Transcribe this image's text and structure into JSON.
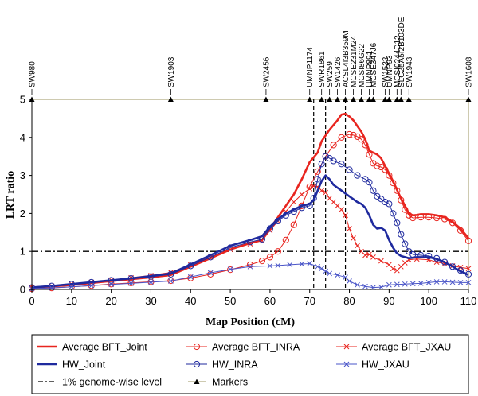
{
  "chart_data": {
    "type": "line",
    "xlabel": "Map Position (cM)",
    "ylabel": "LRT ratio",
    "xlim": [
      0,
      110
    ],
    "ylim": [
      0,
      5
    ],
    "xticks": [
      0,
      10,
      20,
      30,
      40,
      50,
      60,
      70,
      80,
      90,
      100,
      110
    ],
    "yticks": [
      0,
      1,
      2,
      3,
      4,
      5
    ],
    "genome_wise_level": {
      "name": "1% genome-wise level",
      "value": 1.0,
      "color": "#000000"
    },
    "markers_name": "Markers",
    "markers": [
      {
        "name": "SW980",
        "x": 0
      },
      {
        "name": "SW1903",
        "x": 35
      },
      {
        "name": "SW2456",
        "x": 59
      },
      {
        "name": "UMNP1174",
        "x": 70
      },
      {
        "name": "SWR1861",
        "x": 73
      },
      {
        "name": "SW259",
        "x": 75
      },
      {
        "name": "SW1426",
        "x": 77
      },
      {
        "name": "ACSL4I3B359M",
        "x": 79
      },
      {
        "name": "MCSE231M24",
        "x": 81
      },
      {
        "name": "MCSI86G22",
        "x": 83
      },
      {
        "name": "UMNP891",
        "x": 85
      },
      {
        "name": "MCSE347J6",
        "x": 86
      },
      {
        "name": "SW1522",
        "x": 89
      },
      {
        "name": "UMNP93",
        "x": 90
      },
      {
        "name": "MCSI0244D12",
        "x": 92
      },
      {
        "name": "SLC25A5I2B103DE",
        "x": 93
      },
      {
        "name": "SW1943",
        "x": 95
      },
      {
        "name": "SW1608",
        "x": 110
      }
    ],
    "vlines": [
      71,
      74,
      79
    ],
    "series": [
      {
        "name": "Average BFT_Joint",
        "color": "#e8251f",
        "style": "solid",
        "marker": "none",
        "width": 2.6,
        "points": [
          [
            0,
            0.05
          ],
          [
            5,
            0.08
          ],
          [
            10,
            0.12
          ],
          [
            15,
            0.17
          ],
          [
            20,
            0.22
          ],
          [
            25,
            0.27
          ],
          [
            30,
            0.32
          ],
          [
            35,
            0.38
          ],
          [
            40,
            0.6
          ],
          [
            45,
            0.82
          ],
          [
            50,
            1.05
          ],
          [
            55,
            1.22
          ],
          [
            58,
            1.3
          ],
          [
            60,
            1.6
          ],
          [
            62,
            1.9
          ],
          [
            64,
            2.2
          ],
          [
            66,
            2.5
          ],
          [
            68,
            2.9
          ],
          [
            70,
            3.35
          ],
          [
            72,
            3.6
          ],
          [
            73,
            3.9
          ],
          [
            75,
            4.2
          ],
          [
            77,
            4.45
          ],
          [
            78,
            4.6
          ],
          [
            79,
            4.62
          ],
          [
            80,
            4.55
          ],
          [
            81,
            4.45
          ],
          [
            82,
            4.3
          ],
          [
            83,
            4.15
          ],
          [
            84,
            3.95
          ],
          [
            85,
            3.65
          ],
          [
            86,
            3.6
          ],
          [
            87,
            3.55
          ],
          [
            88,
            3.45
          ],
          [
            89,
            3.25
          ],
          [
            90,
            3.05
          ],
          [
            91,
            2.85
          ],
          [
            92,
            2.62
          ],
          [
            93,
            2.4
          ],
          [
            94,
            2.2
          ],
          [
            95,
            2.0
          ],
          [
            96,
            1.95
          ],
          [
            97,
            1.96
          ],
          [
            98,
            1.98
          ],
          [
            100,
            1.98
          ],
          [
            102,
            1.95
          ],
          [
            104,
            1.9
          ],
          [
            106,
            1.78
          ],
          [
            108,
            1.6
          ],
          [
            110,
            1.35
          ]
        ]
      },
      {
        "name": "Average BFT_INRA",
        "color": "#e8251f",
        "style": "solid",
        "marker": "circle",
        "width": 1,
        "points": [
          [
            0,
            0.02
          ],
          [
            5,
            0.04
          ],
          [
            10,
            0.07
          ],
          [
            15,
            0.1
          ],
          [
            20,
            0.14
          ],
          [
            25,
            0.17
          ],
          [
            30,
            0.2
          ],
          [
            35,
            0.23
          ],
          [
            40,
            0.3
          ],
          [
            45,
            0.4
          ],
          [
            50,
            0.52
          ],
          [
            55,
            0.65
          ],
          [
            58,
            0.75
          ],
          [
            60,
            0.85
          ],
          [
            62,
            1.0
          ],
          [
            64,
            1.3
          ],
          [
            66,
            1.7
          ],
          [
            68,
            2.2
          ],
          [
            70,
            2.7
          ],
          [
            72,
            3.1
          ],
          [
            74,
            3.5
          ],
          [
            76,
            3.8
          ],
          [
            78,
            4.0
          ],
          [
            80,
            4.08
          ],
          [
            81,
            4.06
          ],
          [
            82,
            4.02
          ],
          [
            83,
            3.95
          ],
          [
            84,
            3.8
          ],
          [
            85,
            3.55
          ],
          [
            86,
            3.32
          ],
          [
            87,
            3.25
          ],
          [
            88,
            3.22
          ],
          [
            89,
            3.15
          ],
          [
            90,
            3.0
          ],
          [
            91,
            2.8
          ],
          [
            92,
            2.6
          ],
          [
            93,
            2.35
          ],
          [
            94,
            2.1
          ],
          [
            95,
            1.95
          ],
          [
            96,
            1.88
          ],
          [
            98,
            1.9
          ],
          [
            100,
            1.9
          ],
          [
            102,
            1.88
          ],
          [
            104,
            1.85
          ],
          [
            106,
            1.75
          ],
          [
            108,
            1.55
          ],
          [
            110,
            1.28
          ]
        ]
      },
      {
        "name": "Average BFT_JXAU",
        "color": "#e8251f",
        "style": "solid",
        "marker": "x",
        "width": 1,
        "points": [
          [
            0,
            0.05
          ],
          [
            5,
            0.09
          ],
          [
            10,
            0.14
          ],
          [
            15,
            0.19
          ],
          [
            20,
            0.25
          ],
          [
            25,
            0.31
          ],
          [
            30,
            0.37
          ],
          [
            35,
            0.45
          ],
          [
            40,
            0.65
          ],
          [
            45,
            0.85
          ],
          [
            50,
            1.05
          ],
          [
            55,
            1.2
          ],
          [
            58,
            1.28
          ],
          [
            60,
            1.55
          ],
          [
            62,
            1.8
          ],
          [
            64,
            2.05
          ],
          [
            66,
            2.3
          ],
          [
            68,
            2.5
          ],
          [
            70,
            2.65
          ],
          [
            71,
            2.72
          ],
          [
            72,
            2.7
          ],
          [
            73,
            2.6
          ],
          [
            74,
            2.55
          ],
          [
            75,
            2.4
          ],
          [
            76,
            2.3
          ],
          [
            77,
            2.2
          ],
          [
            78,
            2.1
          ],
          [
            79,
            1.95
          ],
          [
            80,
            1.6
          ],
          [
            81,
            1.35
          ],
          [
            82,
            1.15
          ],
          [
            83,
            1.0
          ],
          [
            84,
            0.9
          ],
          [
            85,
            0.92
          ],
          [
            86,
            0.85
          ],
          [
            88,
            0.75
          ],
          [
            90,
            0.65
          ],
          [
            91,
            0.55
          ],
          [
            92,
            0.5
          ],
          [
            93,
            0.6
          ],
          [
            94,
            0.7
          ],
          [
            95,
            0.78
          ],
          [
            97,
            0.8
          ],
          [
            100,
            0.78
          ],
          [
            102,
            0.72
          ],
          [
            104,
            0.68
          ],
          [
            106,
            0.62
          ],
          [
            108,
            0.58
          ],
          [
            110,
            0.55
          ]
        ]
      },
      {
        "name": "HW_Joint",
        "color": "#1f2a9e",
        "style": "solid",
        "marker": "none",
        "width": 2.6,
        "points": [
          [
            0,
            0.05
          ],
          [
            5,
            0.09
          ],
          [
            10,
            0.14
          ],
          [
            15,
            0.19
          ],
          [
            20,
            0.24
          ],
          [
            25,
            0.29
          ],
          [
            30,
            0.35
          ],
          [
            35,
            0.42
          ],
          [
            40,
            0.66
          ],
          [
            45,
            0.9
          ],
          [
            50,
            1.15
          ],
          [
            55,
            1.3
          ],
          [
            58,
            1.4
          ],
          [
            60,
            1.65
          ],
          [
            62,
            1.85
          ],
          [
            64,
            2.0
          ],
          [
            66,
            2.1
          ],
          [
            68,
            2.2
          ],
          [
            70,
            2.25
          ],
          [
            71,
            2.35
          ],
          [
            72,
            2.6
          ],
          [
            73,
            2.85
          ],
          [
            74,
            3.0
          ],
          [
            75,
            2.9
          ],
          [
            76,
            2.75
          ],
          [
            78,
            2.6
          ],
          [
            80,
            2.45
          ],
          [
            82,
            2.3
          ],
          [
            83,
            2.25
          ],
          [
            84,
            2.15
          ],
          [
            85,
            1.95
          ],
          [
            86,
            1.7
          ],
          [
            87,
            1.6
          ],
          [
            88,
            1.62
          ],
          [
            89,
            1.55
          ],
          [
            90,
            1.3
          ],
          [
            91,
            1.1
          ],
          [
            92,
            0.95
          ],
          [
            93,
            0.88
          ],
          [
            95,
            0.82
          ],
          [
            97,
            0.85
          ],
          [
            100,
            0.85
          ],
          [
            102,
            0.8
          ],
          [
            104,
            0.72
          ],
          [
            106,
            0.6
          ],
          [
            108,
            0.48
          ],
          [
            110,
            0.38
          ]
        ]
      },
      {
        "name": "HW_INRA",
        "color": "#1f2a9e",
        "style": "solid",
        "marker": "circle",
        "width": 1,
        "points": [
          [
            0,
            0.05
          ],
          [
            5,
            0.09
          ],
          [
            10,
            0.14
          ],
          [
            15,
            0.19
          ],
          [
            20,
            0.24
          ],
          [
            25,
            0.29
          ],
          [
            30,
            0.34
          ],
          [
            35,
            0.4
          ],
          [
            40,
            0.62
          ],
          [
            45,
            0.85
          ],
          [
            50,
            1.1
          ],
          [
            55,
            1.25
          ],
          [
            58,
            1.32
          ],
          [
            60,
            1.6
          ],
          [
            62,
            1.8
          ],
          [
            64,
            1.95
          ],
          [
            66,
            2.05
          ],
          [
            68,
            2.15
          ],
          [
            70,
            2.2
          ],
          [
            71,
            2.4
          ],
          [
            72,
            2.9
          ],
          [
            73,
            3.3
          ],
          [
            74,
            3.5
          ],
          [
            75,
            3.45
          ],
          [
            76,
            3.38
          ],
          [
            78,
            3.3
          ],
          [
            80,
            3.15
          ],
          [
            82,
            3.0
          ],
          [
            84,
            2.9
          ],
          [
            85,
            2.82
          ],
          [
            86,
            2.6
          ],
          [
            87,
            2.45
          ],
          [
            88,
            2.38
          ],
          [
            89,
            2.3
          ],
          [
            90,
            2.25
          ],
          [
            91,
            2.0
          ],
          [
            92,
            1.75
          ],
          [
            93,
            1.45
          ],
          [
            94,
            1.2
          ],
          [
            95,
            1.0
          ],
          [
            96,
            0.92
          ],
          [
            98,
            0.9
          ],
          [
            100,
            0.88
          ],
          [
            102,
            0.82
          ],
          [
            104,
            0.72
          ],
          [
            106,
            0.6
          ],
          [
            108,
            0.5
          ],
          [
            110,
            0.4
          ]
        ]
      },
      {
        "name": "HW_JXAU",
        "color": "#4a55c8",
        "style": "solid",
        "marker": "x",
        "width": 1,
        "points": [
          [
            0,
            0.02
          ],
          [
            5,
            0.04
          ],
          [
            10,
            0.07
          ],
          [
            15,
            0.1
          ],
          [
            20,
            0.13
          ],
          [
            25,
            0.16
          ],
          [
            30,
            0.19
          ],
          [
            35,
            0.22
          ],
          [
            40,
            0.33
          ],
          [
            45,
            0.44
          ],
          [
            50,
            0.53
          ],
          [
            55,
            0.6
          ],
          [
            60,
            0.62
          ],
          [
            62,
            0.63
          ],
          [
            65,
            0.65
          ],
          [
            68,
            0.67
          ],
          [
            70,
            0.68
          ],
          [
            72,
            0.6
          ],
          [
            73,
            0.55
          ],
          [
            74,
            0.48
          ],
          [
            75,
            0.42
          ],
          [
            77,
            0.38
          ],
          [
            79,
            0.32
          ],
          [
            80,
            0.22
          ],
          [
            82,
            0.12
          ],
          [
            84,
            0.08
          ],
          [
            86,
            0.05
          ],
          [
            88,
            0.06
          ],
          [
            90,
            0.12
          ],
          [
            92,
            0.13
          ],
          [
            94,
            0.14
          ],
          [
            96,
            0.15
          ],
          [
            98,
            0.16
          ],
          [
            100,
            0.18
          ],
          [
            102,
            0.2
          ],
          [
            104,
            0.2
          ],
          [
            106,
            0.19
          ],
          [
            108,
            0.18
          ],
          [
            110,
            0.18
          ]
        ]
      }
    ]
  },
  "legend": {
    "entries": [
      {
        "series": 0,
        "label": "Average BFT_Joint"
      },
      {
        "series": 1,
        "label": "Average BFT_INRA"
      },
      {
        "series": 2,
        "label": "Average BFT_JXAU"
      },
      {
        "series": 3,
        "label": "HW_Joint"
      },
      {
        "series": 4,
        "label": "HW_INRA"
      },
      {
        "series": 5,
        "label": "HW_JXAU"
      },
      {
        "kind": "genome",
        "label": "1% genome-wise level"
      },
      {
        "kind": "markers",
        "label": "Markers"
      }
    ]
  }
}
